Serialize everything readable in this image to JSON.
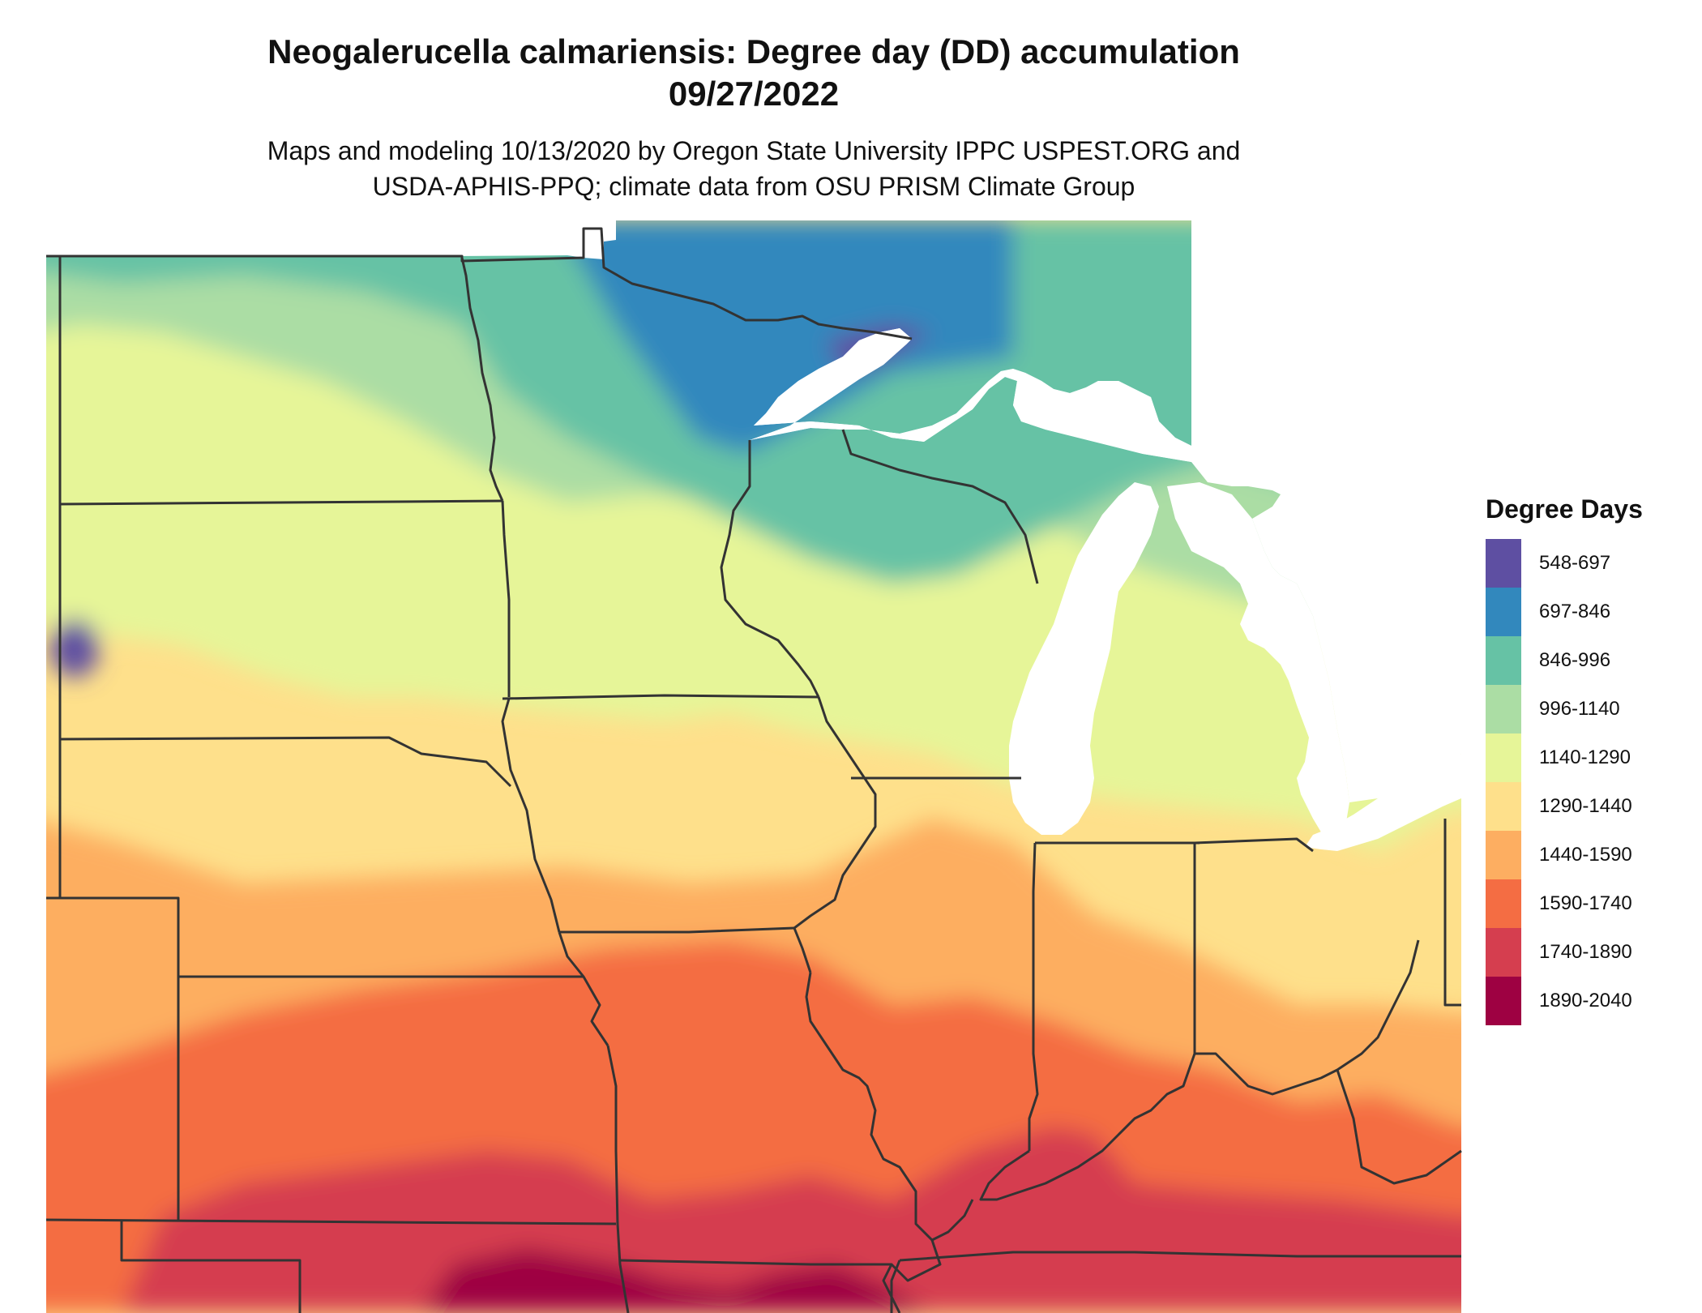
{
  "title_line1": "Neogalerucella calmariensis: Degree day (DD) accumulation",
  "title_line2": "09/27/2022",
  "subtitle_line1": "Maps and modeling 10/13/2020 by Oregon State University IPPC USPEST.ORG and",
  "subtitle_line2": "USDA-APHIS-PPQ; climate data from OSU PRISM Climate Group",
  "legend": {
    "title": "Degree Days",
    "items": [
      {
        "label": "548-697",
        "color": "#5e4fa2"
      },
      {
        "label": "697-846",
        "color": "#3288bd"
      },
      {
        "label": "846-996",
        "color": "#66c2a5"
      },
      {
        "label": "996-1140",
        "color": "#abdda4"
      },
      {
        "label": "1140-1290",
        "color": "#e6f598"
      },
      {
        "label": "1290-1440",
        "color": "#fee08b"
      },
      {
        "label": "1440-1590",
        "color": "#fdae61"
      },
      {
        "label": "1590-1740",
        "color": "#f46d43"
      },
      {
        "label": "1740-1890",
        "color": "#d53e4f"
      },
      {
        "label": "1890-2040",
        "color": "#9e0142"
      }
    ]
  },
  "map": {
    "lake_color": "#ffffff",
    "border_color": "#333333"
  }
}
